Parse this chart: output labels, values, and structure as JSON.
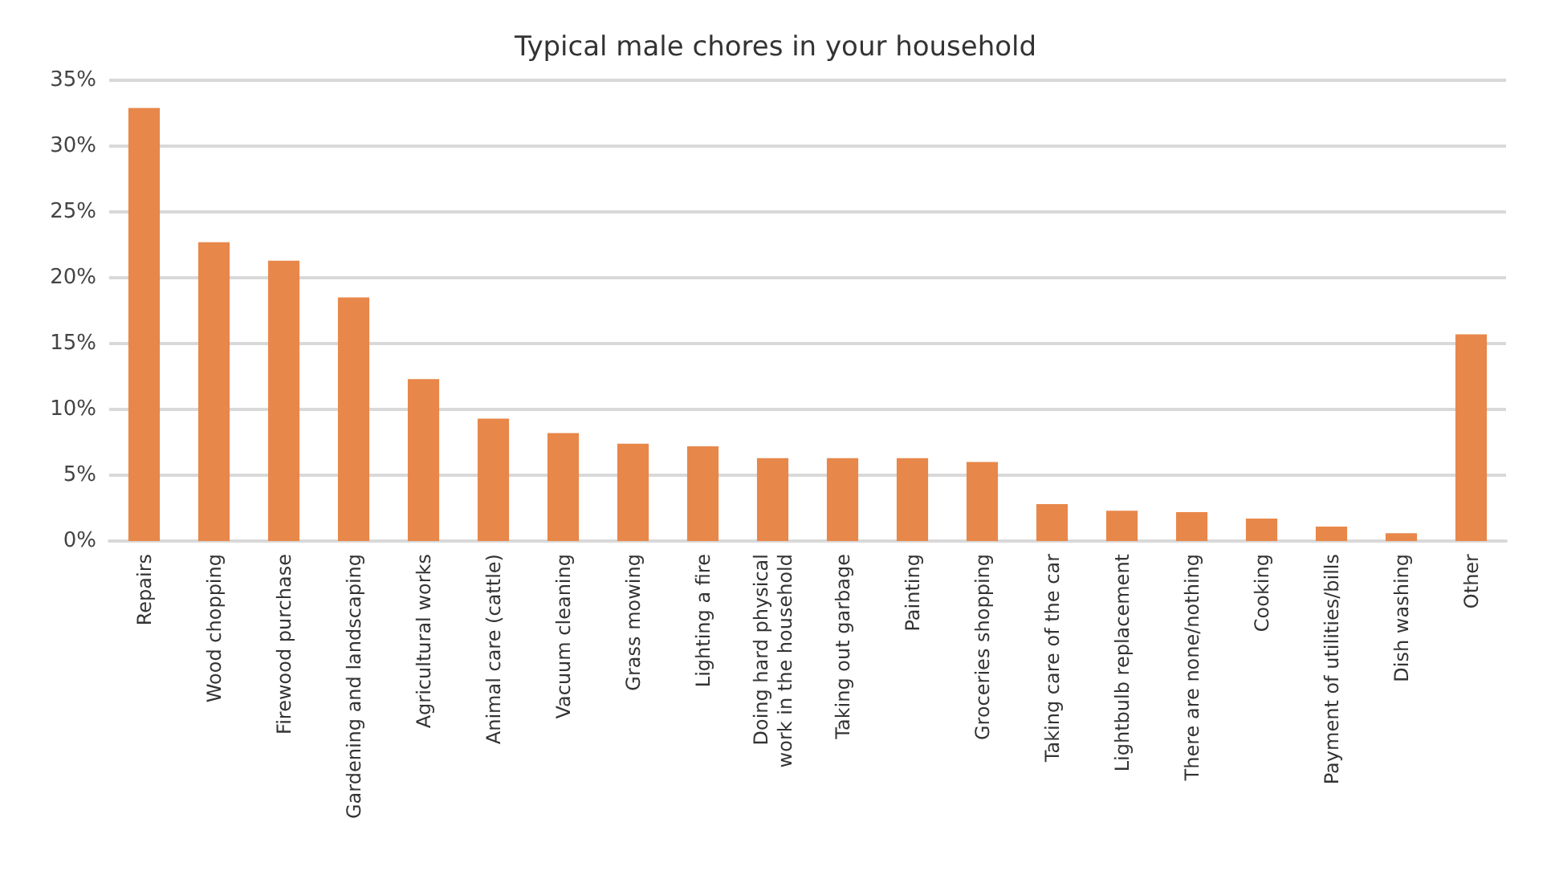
{
  "chart_data": {
    "type": "bar",
    "title": "Typical male chores in your household",
    "categories": [
      "Repairs",
      "Wood chopping",
      "Firewood purchase",
      "Gardening and landscaping",
      "Agricultural works",
      "Animal care (cattle)",
      "Vacuum cleaning",
      "Grass mowing",
      "Lighting a fire",
      "Doing hard physical\nwork in the household",
      "Taking out garbage",
      "Painting",
      "Groceries shopping",
      "Taking care of the car",
      "Lightbulb replacement",
      "There are none/nothing",
      "Cooking",
      "Payment of utilities/bills",
      "Dish washing",
      "Other"
    ],
    "values": [
      32.9,
      22.7,
      21.3,
      18.5,
      12.3,
      9.3,
      8.2,
      7.4,
      7.2,
      6.3,
      6.3,
      6.3,
      6.0,
      2.8,
      2.3,
      2.2,
      1.7,
      1.1,
      0.6,
      15.7
    ],
    "color": "#e8874a",
    "ylim": [
      0,
      35
    ],
    "yticks": [
      {
        "value": 0,
        "label": "0%"
      },
      {
        "value": 5,
        "label": "5%"
      },
      {
        "value": 10,
        "label": "10%"
      },
      {
        "value": 15,
        "label": "15%"
      },
      {
        "value": 20,
        "label": "20%"
      },
      {
        "value": 25,
        "label": "25%"
      },
      {
        "value": 30,
        "label": "30%"
      },
      {
        "value": 35,
        "label": "35%"
      }
    ],
    "grid": "y"
  }
}
